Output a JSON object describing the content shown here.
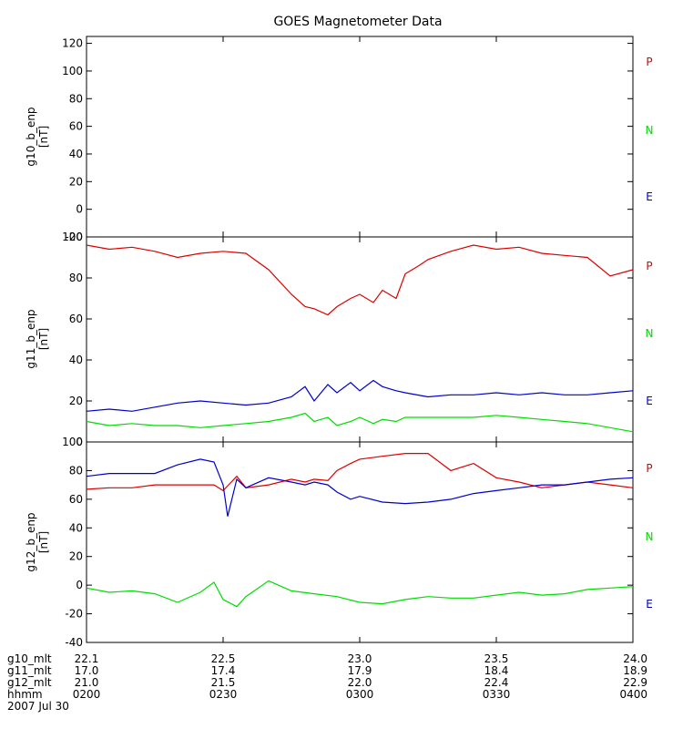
{
  "chart_data": {
    "type": "line",
    "title": "GOES Magnetometer Data",
    "x_range_hhmm": [
      200,
      400
    ],
    "x_ticks": [
      {
        "g10_mlt": "22.1",
        "g11_mlt": "17.0",
        "g12_mlt": "21.0",
        "hhmm": "0200"
      },
      {
        "g10_mlt": "22.5",
        "g11_mlt": "17.4",
        "g12_mlt": "21.5",
        "hhmm": "0230"
      },
      {
        "g10_mlt": "23.0",
        "g11_mlt": "17.9",
        "g12_mlt": "22.0",
        "hhmm": "0300"
      },
      {
        "g10_mlt": "23.5",
        "g11_mlt": "18.4",
        "g12_mlt": "22.4",
        "hhmm": "0330"
      },
      {
        "g10_mlt": "24.0",
        "g11_mlt": "18.9",
        "g12_mlt": "22.9",
        "hhmm": "0400"
      }
    ],
    "x_row_labels": [
      "g10_mlt",
      "g11_mlt",
      "g12_mlt",
      "hhmm"
    ],
    "date_label": "2007 Jul 30",
    "legend": [
      {
        "label": "P",
        "color": "#dd0000"
      },
      {
        "label": "N",
        "color": "#00dd00"
      },
      {
        "label": "E",
        "color": "#0000cc"
      }
    ],
    "panels": [
      {
        "ylabel": "g10_b_enp",
        "yunit": "[nT]",
        "ylim": [
          -20,
          125
        ],
        "yticks": [
          -20,
          0,
          20,
          40,
          60,
          80,
          100,
          120
        ],
        "series": []
      },
      {
        "ylabel": "g11_b_enp",
        "yunit": "[nT]",
        "ylim": [
          0,
          100
        ],
        "yticks": [
          0,
          20,
          40,
          60,
          80,
          100
        ],
        "series": [
          {
            "name": "P",
            "color": "#dd0000",
            "x_minutes": [
              0,
              5,
              10,
              15,
              20,
              25,
              30,
              35,
              40,
              45,
              48,
              50,
              53,
              55,
              58,
              60,
              63,
              65,
              68,
              70,
              73,
              75,
              80,
              85,
              90,
              95,
              100,
              105,
              110,
              115,
              120
            ],
            "values": [
              96,
              94,
              95,
              93,
              90,
              92,
              93,
              92,
              84,
              72,
              66,
              65,
              62,
              66,
              70,
              72,
              68,
              74,
              70,
              82,
              86,
              89,
              93,
              96,
              94,
              95,
              92,
              91,
              90,
              81,
              84
            ]
          },
          {
            "name": "N",
            "color": "#00dd00",
            "x_minutes": [
              0,
              5,
              10,
              15,
              20,
              25,
              30,
              35,
              40,
              45,
              48,
              50,
              53,
              55,
              58,
              60,
              63,
              65,
              68,
              70,
              75,
              80,
              85,
              90,
              95,
              100,
              105,
              110,
              115,
              120
            ],
            "values": [
              10,
              8,
              9,
              8,
              8,
              7,
              8,
              9,
              10,
              12,
              14,
              10,
              12,
              8,
              10,
              12,
              9,
              11,
              10,
              12,
              12,
              12,
              12,
              13,
              12,
              11,
              10,
              9,
              7,
              5
            ]
          },
          {
            "name": "E",
            "color": "#0000cc",
            "x_minutes": [
              0,
              5,
              10,
              15,
              20,
              25,
              30,
              35,
              40,
              45,
              48,
              50,
              53,
              55,
              58,
              60,
              63,
              65,
              68,
              70,
              75,
              80,
              85,
              90,
              95,
              100,
              105,
              110,
              115,
              120
            ],
            "values": [
              15,
              16,
              15,
              17,
              19,
              20,
              19,
              18,
              19,
              22,
              27,
              20,
              28,
              24,
              29,
              25,
              30,
              27,
              25,
              24,
              22,
              23,
              23,
              24,
              23,
              24,
              23,
              23,
              24,
              25
            ]
          }
        ]
      },
      {
        "ylabel": "g12_b_enp",
        "yunit": "[nT]",
        "ylim": [
          -40,
          100
        ],
        "yticks": [
          -40,
          -20,
          0,
          20,
          40,
          60,
          80,
          100
        ],
        "series": [
          {
            "name": "P",
            "color": "#dd0000",
            "x_minutes": [
              0,
              5,
              10,
              15,
              20,
              25,
              28,
              30,
              33,
              35,
              40,
              45,
              48,
              50,
              53,
              55,
              58,
              60,
              65,
              70,
              75,
              80,
              85,
              90,
              95,
              100,
              105,
              110,
              115,
              120
            ],
            "values": [
              67,
              68,
              68,
              70,
              70,
              70,
              70,
              66,
              76,
              68,
              70,
              74,
              72,
              74,
              73,
              80,
              85,
              88,
              90,
              92,
              92,
              80,
              85,
              75,
              72,
              68,
              70,
              72,
              70,
              68
            ]
          },
          {
            "name": "N",
            "color": "#00dd00",
            "x_minutes": [
              0,
              5,
              10,
              15,
              20,
              25,
              28,
              30,
              33,
              35,
              40,
              45,
              50,
              55,
              60,
              65,
              70,
              75,
              80,
              85,
              90,
              95,
              100,
              105,
              110,
              115,
              120
            ],
            "values": [
              -2,
              -5,
              -4,
              -6,
              -12,
              -5,
              2,
              -10,
              -15,
              -8,
              3,
              -4,
              -6,
              -8,
              -12,
              -13,
              -10,
              -8,
              -9,
              -9,
              -7,
              -5,
              -7,
              -6,
              -3,
              -2,
              -1
            ]
          },
          {
            "name": "E",
            "color": "#0000cc",
            "x_minutes": [
              0,
              5,
              10,
              15,
              20,
              25,
              28,
              30,
              31,
              33,
              35,
              40,
              45,
              48,
              50,
              53,
              55,
              58,
              60,
              65,
              70,
              75,
              80,
              85,
              90,
              95,
              100,
              105,
              110,
              115,
              120
            ],
            "values": [
              76,
              78,
              78,
              78,
              84,
              88,
              86,
              70,
              48,
              74,
              68,
              75,
              72,
              70,
              72,
              70,
              65,
              60,
              62,
              58,
              57,
              58,
              60,
              64,
              66,
              68,
              70,
              70,
              72,
              74,
              75
            ]
          }
        ]
      }
    ]
  }
}
